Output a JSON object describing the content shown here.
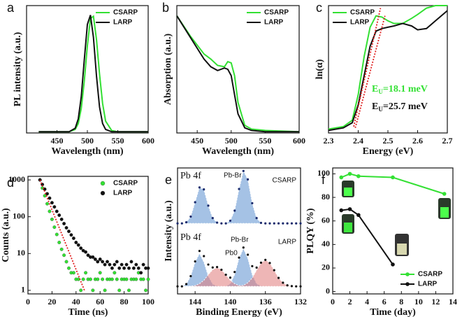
{
  "chart_data": [
    {
      "type": "line",
      "panel": "a",
      "xlabel": "Wavelength (nm)",
      "ylabel": "PL intensity (a.u.)",
      "xlim": [
        400,
        600
      ],
      "ylim": [
        0,
        1.08
      ],
      "xticks": [
        450,
        500,
        550,
        600
      ],
      "legend": "upper right",
      "x": [
        420,
        440,
        460,
        470,
        480,
        485,
        490,
        495,
        500,
        505,
        510,
        515,
        520,
        525,
        530,
        540,
        550,
        560,
        580,
        600
      ],
      "series": [
        {
          "name": "CSARP",
          "color": "#33e033",
          "values": [
            0.01,
            0.01,
            0.01,
            0.01,
            0.03,
            0.08,
            0.21,
            0.44,
            0.74,
            0.97,
            0.99,
            0.79,
            0.5,
            0.25,
            0.1,
            0.02,
            0.01,
            0.01,
            0.01,
            0.01
          ]
        },
        {
          "name": "LARP",
          "color": "#111111",
          "values": [
            0.01,
            0.01,
            0.01,
            0.01,
            0.04,
            0.12,
            0.31,
            0.62,
            0.92,
            1.0,
            0.81,
            0.48,
            0.22,
            0.08,
            0.03,
            0.01,
            0.01,
            0.01,
            0.01,
            0.01
          ]
        }
      ]
    },
    {
      "type": "line",
      "panel": "b",
      "xlabel": "Wavelength (nm)",
      "ylabel": "Absorption (a.u.)",
      "xlim": [
        420,
        600
      ],
      "ylim": [
        0,
        1
      ],
      "xticks": [
        450,
        500,
        550,
        600
      ],
      "legend": "upper right",
      "x": [
        420,
        440,
        460,
        470,
        480,
        490,
        495,
        500,
        505,
        510,
        520,
        530,
        550,
        600
      ],
      "series": [
        {
          "name": "CSARP",
          "color": "#33e033",
          "values": [
            0.92,
            0.76,
            0.62,
            0.58,
            0.53,
            0.52,
            0.56,
            0.55,
            0.45,
            0.24,
            0.06,
            0.03,
            0.02,
            0.01
          ]
        },
        {
          "name": "LARP",
          "color": "#111111",
          "values": [
            0.92,
            0.75,
            0.58,
            0.52,
            0.49,
            0.51,
            0.5,
            0.45,
            0.3,
            0.15,
            0.04,
            0.02,
            0.01,
            0.01
          ]
        }
      ]
    },
    {
      "type": "line",
      "panel": "c",
      "xlabel": "Energy (eV)",
      "ylabel": "ln(α)",
      "xlim": [
        2.3,
        2.7
      ],
      "ylim": [
        0,
        1
      ],
      "xticks": [
        2.3,
        2.4,
        2.5,
        2.6,
        2.7
      ],
      "legend": "upper left",
      "x": [
        2.3,
        2.35,
        2.38,
        2.4,
        2.42,
        2.44,
        2.46,
        2.48,
        2.5,
        2.52,
        2.55,
        2.58,
        2.6,
        2.63,
        2.66,
        2.7
      ],
      "series": [
        {
          "name": "CSARP",
          "color": "#33e033",
          "values": [
            0.03,
            0.05,
            0.1,
            0.3,
            0.6,
            0.83,
            0.92,
            0.91,
            0.88,
            0.86,
            0.86,
            0.9,
            0.93,
            0.98,
            1.0,
            1.0
          ]
        },
        {
          "name": "LARP",
          "color": "#111111",
          "values": [
            0.02,
            0.04,
            0.08,
            0.22,
            0.45,
            0.68,
            0.8,
            0.82,
            0.83,
            0.84,
            0.86,
            0.84,
            0.81,
            0.82,
            0.88,
            0.96
          ]
        }
      ],
      "fits": [
        {
          "color": "#e02020",
          "x": [
            2.385,
            2.475
          ],
          "values": [
            0.05,
            0.98
          ]
        },
        {
          "color": "#e02020",
          "x": [
            2.39,
            2.49
          ],
          "values": [
            0.04,
            0.92
          ]
        }
      ],
      "annotations": [
        {
          "parts": [
            "E",
            "U",
            "=18.1 meV"
          ],
          "color": "#33e033"
        },
        {
          "parts": [
            "E",
            "U",
            "=25.7 meV"
          ],
          "color": "#111111"
        }
      ]
    },
    {
      "type": "scatter",
      "panel": "d",
      "xlabel": "Time (ns)",
      "ylabel": "Counts (a.u.)",
      "xlim": [
        0,
        100
      ],
      "ylim": [
        0.8,
        1250
      ],
      "log_y": true,
      "xticks": [
        0,
        20,
        40,
        60,
        80,
        100
      ],
      "yticks": [
        1,
        10,
        100,
        1000
      ],
      "legend": "upper right",
      "x": [
        10,
        12,
        14,
        16,
        18,
        20,
        22,
        24,
        26,
        28,
        30,
        32,
        34,
        36,
        38,
        40,
        42,
        44,
        46,
        48,
        50,
        52,
        54,
        56,
        58,
        60,
        62,
        64,
        66,
        68,
        70,
        72,
        74,
        76,
        78,
        80,
        82,
        84,
        86,
        88,
        90,
        92,
        94,
        96,
        98,
        100
      ],
      "series": [
        {
          "name": "CSARP",
          "color": "#33e033",
          "values": [
            1000,
            600,
            370,
            225,
            140,
            85,
            52,
            33,
            20,
            13,
            9,
            6,
            4,
            3,
            3,
            2,
            2,
            1,
            2,
            3,
            2,
            2,
            1,
            2,
            2,
            3,
            2,
            1,
            2,
            2,
            2,
            3,
            2,
            1,
            2,
            2,
            2,
            1,
            2,
            2,
            2,
            3,
            2,
            2,
            1,
            2
          ]
        },
        {
          "name": "LARP",
          "color": "#111111",
          "values": [
            1000,
            750,
            560,
            420,
            320,
            240,
            185,
            140,
            110,
            85,
            65,
            50,
            40,
            32,
            26,
            20,
            17,
            14,
            12,
            11,
            9,
            8,
            8,
            7,
            6,
            7,
            6,
            5,
            6,
            5,
            4,
            5,
            6,
            4,
            5,
            4,
            5,
            4,
            6,
            4,
            5,
            4,
            3,
            5,
            4,
            4
          ]
        }
      ],
      "fits": [
        {
          "color": "#e02020",
          "x": [
            10,
            47
          ],
          "values": [
            1000,
            1
          ]
        }
      ]
    },
    {
      "type": "spectrum",
      "panel": "e",
      "xlabel": "Binding Energy (eV)",
      "ylabel": "Intensity (a.u.)",
      "xlim": [
        146,
        132
      ],
      "ylim": [
        0,
        1
      ],
      "xticks": [
        144,
        140,
        136,
        132
      ],
      "x": [
        146,
        145.5,
        145,
        144.5,
        144,
        143.5,
        143,
        142.5,
        142,
        141.5,
        141,
        140.5,
        140,
        139.5,
        139,
        138.5,
        138,
        137.5,
        137,
        136.5,
        136,
        135.5,
        135,
        134.5,
        134,
        133.5,
        133,
        132.5,
        132
      ],
      "spectra": [
        {
          "label": "Pb 4f",
          "name": "CSARP",
          "color": "#1a2a6c",
          "values": [
            0.56,
            0.56,
            0.569,
            0.614,
            0.728,
            0.845,
            0.83,
            0.701,
            0.602,
            0.566,
            0.56,
            0.56,
            0.581,
            0.661,
            0.833,
            0.976,
            0.909,
            0.72,
            0.602,
            0.564,
            0.56,
            0.56,
            0.56,
            0.56,
            0.56,
            0.56,
            0.56,
            0.56,
            0.56
          ],
          "components": [
            {
              "name": "Pb-Br",
              "color": "#5b8fd0",
              "values": [
                0.56,
                0.56,
                0.569,
                0.614,
                0.728,
                0.845,
                0.83,
                0.701,
                0.602,
                0.566,
                0.56,
                0.56,
                0.581,
                0.661,
                0.833,
                0.976,
                0.909,
                0.72,
                0.602,
                0.564,
                0.56,
                0.56,
                0.56,
                0.56,
                0.56,
                0.56,
                0.56,
                0.56,
                0.56
              ]
            }
          ]
        },
        {
          "label": "Pb 4f",
          "name": "LARP",
          "color": "#111111",
          "values": [
            0.06,
            0.06,
            0.078,
            0.141,
            0.258,
            0.341,
            0.3,
            0.233,
            0.21,
            0.213,
            0.192,
            0.152,
            0.129,
            0.174,
            0.288,
            0.368,
            0.311,
            0.22,
            0.209,
            0.248,
            0.27,
            0.245,
            0.188,
            0.127,
            0.089,
            0.068,
            0.062,
            0.06,
            0.06
          ],
          "components": [
            {
              "name": "Pb-Br",
              "color": "#5b8fd0",
              "values": [
                0.06,
                0.06,
                0.078,
                0.141,
                0.252,
                0.32,
                0.252,
                0.141,
                0.078,
                0.063,
                0.06,
                0.06,
                0.081,
                0.153,
                0.282,
                0.36,
                0.282,
                0.153,
                0.081,
                0.063,
                0.06,
                0.06,
                0.06,
                0.06,
                0.06,
                0.06,
                0.06,
                0.06,
                0.06
              ]
            },
            {
              "name": "Pb0",
              "color": "#e07a7a",
              "values": [
                0.06,
                0.06,
                0.06,
                0.061,
                0.066,
                0.081,
                0.108,
                0.152,
                0.192,
                0.21,
                0.192,
                0.152,
                0.108,
                0.081,
                0.066,
                0.068,
                0.089,
                0.127,
                0.188,
                0.245,
                0.27,
                0.245,
                0.188,
                0.127,
                0.089,
                0.068,
                0.062,
                0.06,
                0.06
              ]
            }
          ]
        }
      ]
    },
    {
      "type": "line",
      "panel": "f",
      "xlabel": "Time (day)",
      "ylabel": "PLQY (%)",
      "xlim": [
        0,
        14
      ],
      "ylim": [
        -2,
        105
      ],
      "xticks": [
        0,
        2,
        4,
        6,
        8,
        10,
        12,
        14
      ],
      "yticks": [
        0,
        20,
        40,
        60,
        80,
        100
      ],
      "legend": "lower right",
      "markers": true,
      "series": [
        {
          "name": "CSARP",
          "color": "#33e033",
          "x": [
            1,
            2,
            3,
            7,
            13
          ],
          "values": [
            97,
            100,
            98,
            97,
            83
          ]
        },
        {
          "name": "LARP",
          "color": "#111111",
          "x": [
            1,
            2,
            3,
            7
          ],
          "values": [
            69,
            70,
            65,
            23
          ]
        }
      ]
    }
  ]
}
